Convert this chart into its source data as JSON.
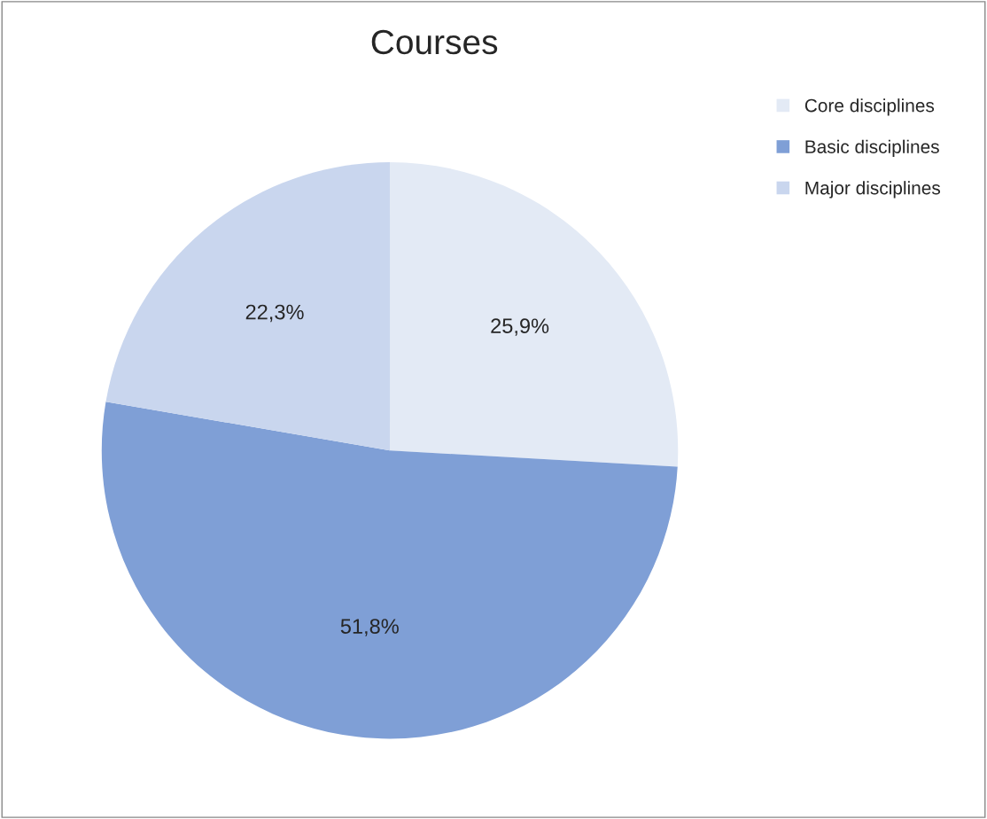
{
  "chart_data": {
    "type": "pie",
    "title": "Courses",
    "categories": [
      "Core disciplines",
      "Basic disciplines",
      "Major disciplines"
    ],
    "values": [
      25.9,
      51.8,
      22.3
    ],
    "value_labels": [
      "25,9%",
      "51,8%",
      "22,3%"
    ],
    "colors": [
      "#e3eaf5",
      "#7f9fd6",
      "#c9d6ee"
    ],
    "legend": "top right"
  }
}
